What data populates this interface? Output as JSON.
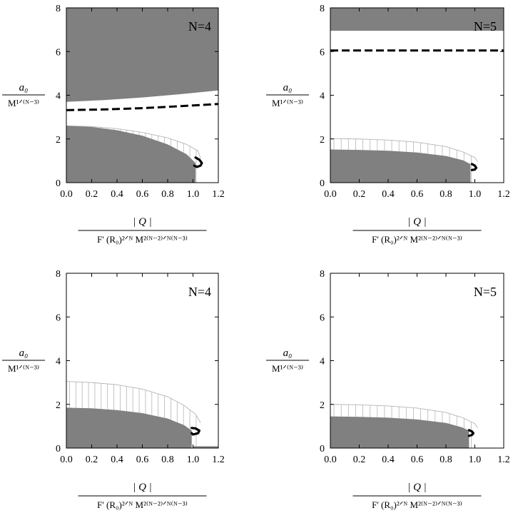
{
  "figure": {
    "y_axis_label": {
      "numerator": "a₀",
      "denominator": "M¹ᐟ⁽ᴺ⁻³⁾"
    },
    "x_axis_label": {
      "numerator": "| Q |",
      "denominator": "F' (R₀)²ᐟᴺ M²⁽ᴺ⁻²⁾ᐟᴺ⁽ᴺ⁻³⁾"
    }
  },
  "colors": {
    "shaded": "#808080",
    "hatch": "#b5b5b5",
    "curve": "#000000",
    "axis": "#000000",
    "background": "#ffffff"
  },
  "chart_data": [
    {
      "type": "area",
      "panel": "top-left",
      "annotation": "N=4",
      "xlim": [
        0,
        1.2
      ],
      "ylim": [
        0,
        8
      ],
      "xticks": [
        "0.0",
        "0.2",
        "0.4",
        "0.6",
        "0.8",
        "1.0",
        "1.2"
      ],
      "yticks": [
        "0",
        "2",
        "4",
        "6",
        "8"
      ],
      "upper_region": {
        "x": [
          0,
          0.3,
          0.6,
          0.9,
          1.2
        ],
        "lower_bound": [
          3.7,
          3.78,
          3.9,
          4.05,
          4.22
        ],
        "upper_bound": 8
      },
      "dashed_line": {
        "x": [
          0,
          0.3,
          0.6,
          0.9,
          1.2
        ],
        "y": [
          3.32,
          3.35,
          3.41,
          3.5,
          3.6
        ]
      },
      "lower_region": {
        "x": [
          0,
          0.2,
          0.4,
          0.6,
          0.8,
          0.95,
          1.02
        ],
        "y": [
          2.6,
          2.55,
          2.4,
          2.15,
          1.75,
          1.3,
          0.9
        ]
      },
      "hatched_band": {
        "x": [
          0,
          0.2,
          0.4,
          0.6,
          0.8,
          0.95,
          1.04,
          1.06
        ],
        "y": [
          2.6,
          2.57,
          2.47,
          2.3,
          2.05,
          1.75,
          1.45,
          1.1
        ]
      },
      "loop": {
        "x": [
          1.02,
          1.05,
          1.07,
          1.06,
          1.03,
          1.01
        ],
        "y": [
          1.15,
          1.05,
          0.9,
          0.78,
          0.72,
          0.78
        ]
      }
    },
    {
      "type": "area",
      "panel": "top-right",
      "annotation": "N=5",
      "xlim": [
        0,
        1.2
      ],
      "ylim": [
        0,
        8
      ],
      "xticks": [
        "0.0",
        "0.2",
        "0.4",
        "0.6",
        "0.8",
        "1.0",
        "1.2"
      ],
      "yticks": [
        "0",
        "2",
        "4",
        "6",
        "8"
      ],
      "upper_region": {
        "x": [
          0,
          1.2
        ],
        "lower_bound": [
          6.95,
          6.95
        ],
        "upper_bound": 8
      },
      "dashed_line": {
        "x": [
          0,
          1.2
        ],
        "y": [
          6.05,
          6.05
        ]
      },
      "lower_region": {
        "x": [
          0,
          0.2,
          0.4,
          0.6,
          0.8,
          0.92,
          0.97
        ],
        "y": [
          1.52,
          1.5,
          1.46,
          1.38,
          1.22,
          1.02,
          0.85
        ]
      },
      "hatched_band": {
        "x": [
          0,
          0.2,
          0.4,
          0.6,
          0.8,
          0.92,
          1.0,
          1.02
        ],
        "y": [
          2.02,
          2.0,
          1.95,
          1.85,
          1.65,
          1.4,
          1.15,
          0.95
        ]
      },
      "loop": {
        "x": [
          0.98,
          1.0,
          1.01,
          1.0,
          0.98
        ],
        "y": [
          0.85,
          0.78,
          0.68,
          0.6,
          0.58
        ]
      }
    },
    {
      "type": "area",
      "panel": "bottom-left",
      "annotation": "N=4",
      "xlim": [
        0,
        1.2
      ],
      "ylim": [
        0,
        8
      ],
      "xticks": [
        "0.0",
        "0.2",
        "0.4",
        "0.6",
        "0.8",
        "1.0",
        "1.2"
      ],
      "yticks": [
        "0",
        "2",
        "4",
        "6",
        "8"
      ],
      "upper_region": null,
      "dashed_line": null,
      "lower_region": {
        "x": [
          0,
          0.2,
          0.4,
          0.6,
          0.8,
          0.93,
          0.99
        ],
        "y": [
          1.85,
          1.82,
          1.74,
          1.6,
          1.35,
          1.05,
          0.8
        ]
      },
      "hatched_band": {
        "x": [
          0,
          0.2,
          0.4,
          0.6,
          0.8,
          0.93,
          1.02,
          1.06
        ],
        "y": [
          3.05,
          3.0,
          2.9,
          2.7,
          2.35,
          1.95,
          1.55,
          1.15
        ]
      },
      "loop": {
        "x": [
          0.99,
          1.02,
          1.05,
          1.04,
          1.0,
          0.99
        ],
        "y": [
          0.92,
          0.9,
          0.8,
          0.68,
          0.62,
          0.68
        ]
      },
      "baseline_segment": {
        "x": [
          1.0,
          1.2
        ],
        "y": [
          0.05,
          0.05
        ]
      }
    },
    {
      "type": "area",
      "panel": "bottom-right",
      "annotation": "N=5",
      "xlim": [
        0,
        1.2
      ],
      "ylim": [
        0,
        8
      ],
      "xticks": [
        "0.0",
        "0.2",
        "0.4",
        "0.6",
        "0.8",
        "1.0",
        "1.2"
      ],
      "yticks": [
        "0",
        "2",
        "4",
        "6",
        "8"
      ],
      "upper_region": null,
      "dashed_line": null,
      "lower_region": {
        "x": [
          0,
          0.2,
          0.4,
          0.6,
          0.8,
          0.91,
          0.96
        ],
        "y": [
          1.45,
          1.43,
          1.39,
          1.31,
          1.15,
          0.95,
          0.8
        ]
      },
      "hatched_band": {
        "x": [
          0,
          0.2,
          0.4,
          0.6,
          0.8,
          0.92,
          1.0,
          1.02
        ],
        "y": [
          2.0,
          1.98,
          1.93,
          1.83,
          1.63,
          1.38,
          1.12,
          0.92
        ]
      },
      "loop": {
        "x": [
          0.96,
          0.98,
          0.99,
          0.98,
          0.96
        ],
        "y": [
          0.82,
          0.76,
          0.68,
          0.6,
          0.56
        ]
      }
    }
  ]
}
